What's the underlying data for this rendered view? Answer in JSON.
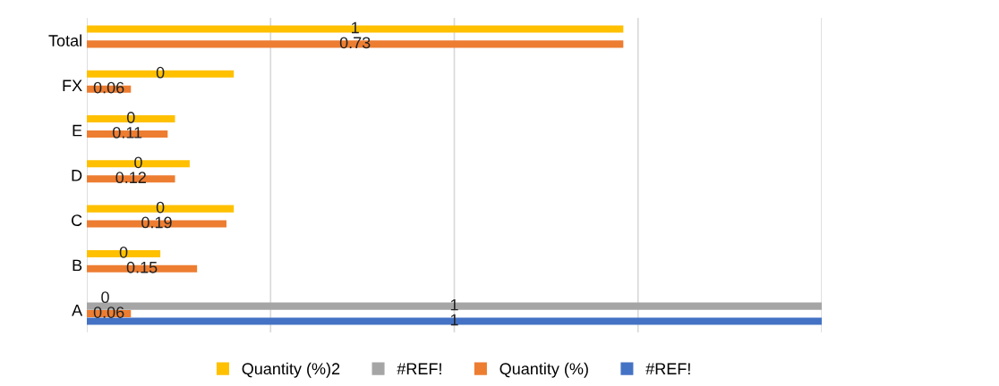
{
  "chart_data": {
    "type": "bar",
    "orientation": "horizontal",
    "categories": [
      "Total",
      "FX",
      "E",
      "D",
      "C",
      "B",
      "A"
    ],
    "series": [
      {
        "name": "Quantity (%)2",
        "color": "#ffc000",
        "values": [
          0.73,
          0.2,
          0.12,
          0.14,
          0.2,
          0.1,
          0
        ],
        "value_labels": [
          "1",
          "0",
          "0",
          "0",
          "0",
          "0",
          "0"
        ]
      },
      {
        "name": "#REF!",
        "color": "#a5a5a5",
        "values": [
          null,
          null,
          null,
          null,
          null,
          null,
          1
        ],
        "value_labels": [
          null,
          null,
          null,
          null,
          null,
          null,
          "1"
        ]
      },
      {
        "name": "Quantity (%)",
        "color": "#ed7d31",
        "values": [
          0.73,
          0.06,
          0.11,
          0.12,
          0.19,
          0.15,
          0.06
        ],
        "value_labels": [
          "0.73",
          "0.06",
          "0.11",
          "0.12",
          "0.19",
          "0.15",
          "0.06"
        ]
      },
      {
        "name": "#REF!",
        "color": "#4472c4",
        "values": [
          null,
          null,
          null,
          null,
          null,
          null,
          1
        ],
        "value_labels": [
          null,
          null,
          null,
          null,
          null,
          null,
          "1"
        ]
      }
    ],
    "xlim": [
      0,
      1
    ],
    "xticks": [
      {
        "value": 0,
        "label": null
      },
      {
        "value": 0.25,
        "label": null
      },
      {
        "value": 0.5,
        "label": null
      },
      {
        "value": 0.75,
        "label": null
      },
      {
        "value": 1,
        "label": null
      }
    ],
    "grid": "x",
    "tick_labels": "y",
    "legend": "bottom"
  }
}
